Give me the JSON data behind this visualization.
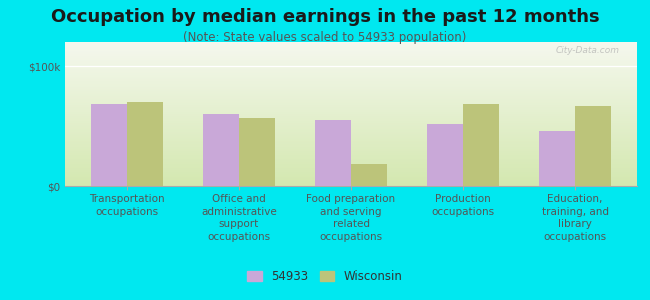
{
  "title": "Occupation by median earnings in the past 12 months",
  "subtitle": "(Note: State values scaled to 54933 population)",
  "categories": [
    "Transportation\noccupations",
    "Office and\nadministrative\nsupport\noccupations",
    "Food preparation\nand serving\nrelated\noccupations",
    "Production\noccupations",
    "Education,\ntraining, and\nlibrary\noccupations"
  ],
  "values_54933": [
    68000,
    60000,
    55000,
    52000,
    46000
  ],
  "values_wisconsin": [
    70000,
    57000,
    18000,
    68000,
    67000
  ],
  "color_54933": "#c9a8d8",
  "color_wisconsin": "#bcc47a",
  "background_outer": "#00e8f0",
  "background_plot_top": "#f5f8ee",
  "background_plot_bottom": "#d4e8b0",
  "ylim": [
    0,
    120000
  ],
  "yticks": [
    0,
    100000
  ],
  "ytick_labels": [
    "$0",
    "$100k"
  ],
  "legend_label_54933": "54933",
  "legend_label_wisconsin": "Wisconsin",
  "watermark": "City-Data.com",
  "bar_width": 0.32,
  "title_fontsize": 13,
  "subtitle_fontsize": 8.5,
  "tick_fontsize": 7.5,
  "legend_fontsize": 8.5
}
